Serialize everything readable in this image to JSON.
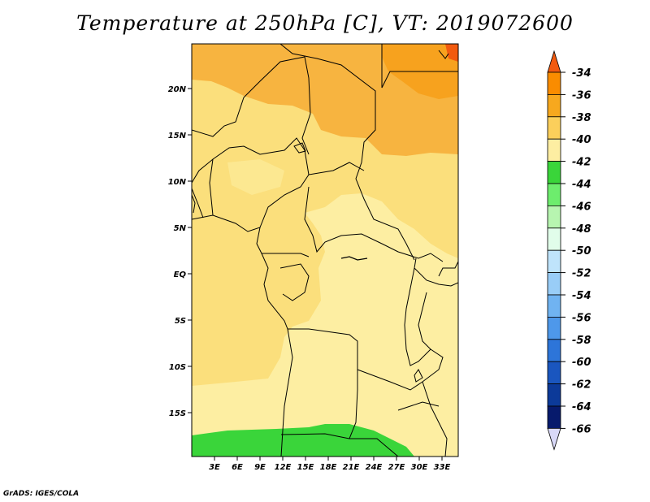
{
  "title": "Temperature at 250hPa [C], VT: 2019072600",
  "credit": "GrADS: IGES/COLA",
  "map": {
    "lat_labels": [
      "20N",
      "15N",
      "10N",
      "5N",
      "EQ",
      "5S",
      "10S",
      "15S"
    ],
    "lon_labels": [
      "3E",
      "6E",
      "9E",
      "12E",
      "15E",
      "18E",
      "21E",
      "24E",
      "27E",
      "30E",
      "33E"
    ]
  },
  "colorbar": {
    "labels": [
      "-34",
      "-36",
      "-38",
      "-40",
      "-42",
      "-44",
      "-46",
      "-48",
      "-50",
      "-52",
      "-54",
      "-56",
      "-58",
      "-60",
      "-62",
      "-64",
      "-66"
    ],
    "colors": [
      "#f25a0f",
      "#fa8c00",
      "#f7a81e",
      "#fbcf5b",
      "#fdeea2",
      "#3ad53a",
      "#6ded6d",
      "#b7f5b0",
      "#e1fdea",
      "#bfe4fb",
      "#99cdf7",
      "#70b3f1",
      "#4e98ea",
      "#2d75d9",
      "#1a56bf",
      "#0c3a99",
      "#071a6c",
      "#d9d9f8"
    ]
  },
  "field_colors": {
    "-44": "#3ad53a",
    "-42": "#fdeea2",
    "-40": "#fbdf7c",
    "-38": "#f7b440",
    "-36": "#f7a21e",
    "-34": "#f25a0f"
  }
}
